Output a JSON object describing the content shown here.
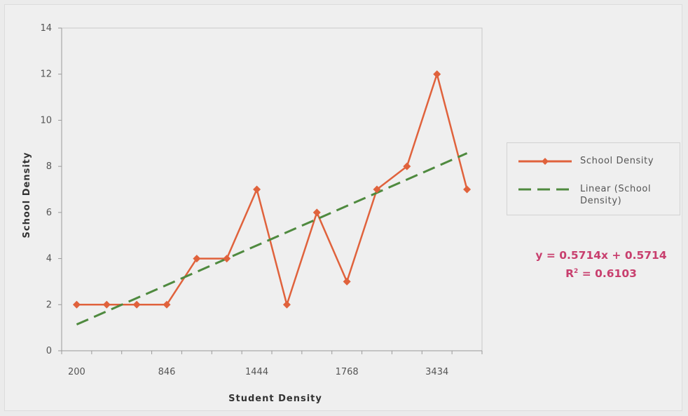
{
  "chart_data": {
    "type": "line",
    "x": [
      "200",
      "",
      "",
      "846",
      "",
      "",
      "1444",
      "",
      "",
      "1768",
      "",
      "",
      "3434",
      ""
    ],
    "series": [
      {
        "name": "School Density",
        "values": [
          2,
          2,
          2,
          2,
          4,
          4,
          7,
          2,
          6,
          3,
          7,
          8,
          12,
          7
        ],
        "color": "#e0623c",
        "marker": "diamond"
      },
      {
        "name": "Linear (School Density)",
        "values": [
          1.14,
          1.71,
          2.29,
          2.86,
          3.43,
          4.0,
          4.57,
          5.14,
          5.71,
          6.29,
          6.86,
          7.43,
          8.0,
          8.57
        ],
        "color": "#4f8a3f",
        "style": "dashed"
      }
    ],
    "xlabel": "Student Density",
    "ylabel": "School Density",
    "ylim": [
      0,
      14
    ],
    "yticks": [
      0,
      2,
      4,
      6,
      8,
      10,
      12,
      14
    ],
    "xtick_labels": [
      "200",
      "846",
      "1444",
      "1768",
      "3434"
    ],
    "legend_position": "right",
    "trendline": {
      "equation": "y = 0.5714x + 0.5714",
      "r2_label": "R",
      "r2_sup": "2",
      "r2_value": " = 0.6103",
      "color": "#c83f6e"
    }
  }
}
